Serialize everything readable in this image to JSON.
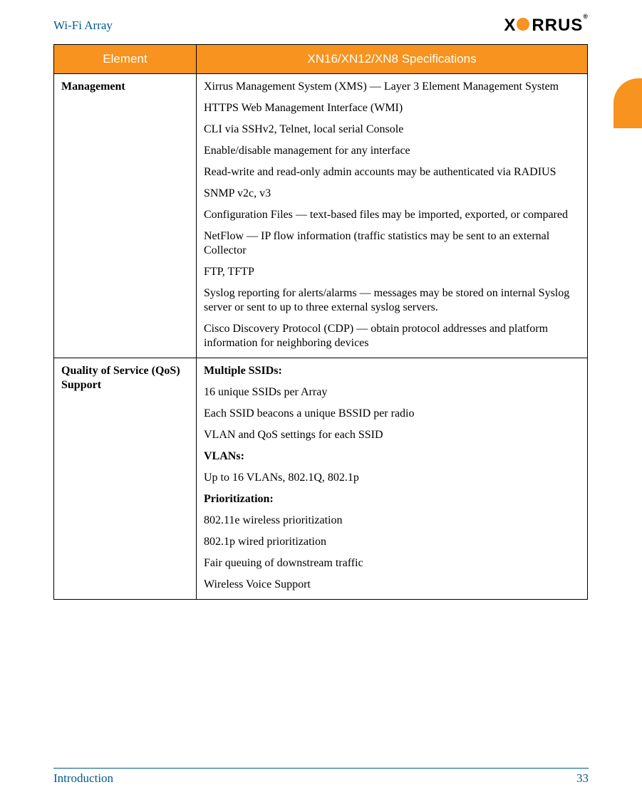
{
  "header": {
    "title": "Wi-Fi Array",
    "logo_text_left": "X",
    "logo_text_right": "RRUS",
    "logo_r": "®"
  },
  "colors": {
    "accent_orange": "#f7931e",
    "header_text": "#005a8c",
    "table_border": "#000000",
    "table_header_text": "#ffffff",
    "body_text": "#000000"
  },
  "table": {
    "headers": {
      "col1": "Element",
      "col2": "XN16/XN12/XN8 Specifications"
    },
    "rows": [
      {
        "label": "Management",
        "content": [
          {
            "text": "Xirrus Management System (XMS) — Layer 3 Element Management System",
            "bold": false
          },
          {
            "text": "HTTPS Web Management Interface (WMI)",
            "bold": false
          },
          {
            "text": "CLI via SSHv2, Telnet, local serial Console",
            "bold": false
          },
          {
            "text": "Enable/disable management for any interface",
            "bold": false
          },
          {
            "text": "Read-write and read-only admin accounts may be authenticated via RADIUS",
            "bold": false
          },
          {
            "text": "SNMP v2c, v3",
            "bold": false
          },
          {
            "text": "Configuration Files — text-based files may be imported, exported, or compared",
            "bold": false
          },
          {
            "text": "NetFlow — IP flow information (traffic statistics may be sent to an external Collector",
            "bold": false
          },
          {
            "text": "FTP, TFTP",
            "bold": false
          },
          {
            "text": "Syslog reporting for alerts/alarms — messages may be stored on internal Syslog server or sent to up to three external syslog servers.",
            "bold": false
          },
          {
            "text": "Cisco Discovery Protocol (CDP) — obtain protocol addresses and platform information for neighboring devices",
            "bold": false
          }
        ]
      },
      {
        "label": "Quality of Service (QoS) Support",
        "content": [
          {
            "text": "Multiple SSIDs:",
            "bold": true
          },
          {
            "text": "16 unique SSIDs per Array",
            "bold": false
          },
          {
            "text": "Each SSID beacons a unique BSSID per radio",
            "bold": false
          },
          {
            "text": "VLAN and QoS settings for each SSID",
            "bold": false
          },
          {
            "text": "VLANs:",
            "bold": true
          },
          {
            "text": "Up to 16 VLANs, 802.1Q, 802.1p",
            "bold": false
          },
          {
            "text": "Prioritization:",
            "bold": true
          },
          {
            "text": "802.11e wireless prioritization",
            "bold": false
          },
          {
            "text": "802.1p wired prioritization",
            "bold": false
          },
          {
            "text": "Fair queuing of downstream traffic",
            "bold": false
          },
          {
            "text": "Wireless Voice Support",
            "bold": false
          }
        ]
      }
    ]
  },
  "footer": {
    "section": "Introduction",
    "page_number": "33"
  }
}
